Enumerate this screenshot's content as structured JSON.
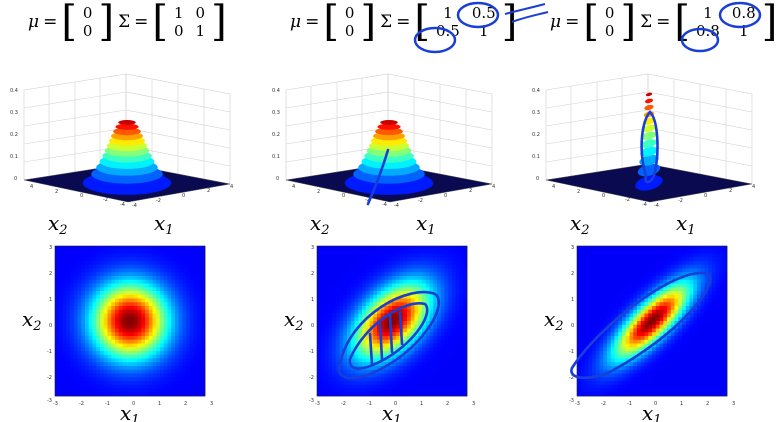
{
  "panels": [
    {
      "formula": {
        "mu_symbol": "μ",
        "sigma_symbol": "Σ",
        "eq": "=",
        "mu": [
          "0",
          "0"
        ],
        "sigma": [
          [
            "1",
            "0"
          ],
          [
            "0",
            "1"
          ]
        ]
      },
      "surface": {
        "ylim": [
          0,
          0.4
        ],
        "zticks": [
          "0.4",
          "0.3",
          "0.2",
          "0.1",
          "0"
        ],
        "xticks": [
          "-4",
          "-2",
          "0",
          "2",
          "4"
        ],
        "yticks": [
          "4",
          "2",
          "0",
          "-2",
          "-4"
        ],
        "x1_label": "x",
        "x1_sub": "1",
        "x2_label": "x",
        "x2_sub": "2"
      },
      "contour": {
        "xticks": [
          "-3",
          "-2",
          "-1",
          "0",
          "1",
          "2",
          "3"
        ],
        "yticks": [
          "3",
          "2",
          "1",
          "0",
          "-1",
          "-2",
          "-3"
        ],
        "x1_label": "x",
        "x1_sub": "1",
        "x2_label": "x",
        "x2_sub": "2"
      },
      "correlation": 0
    },
    {
      "formula": {
        "mu_symbol": "μ",
        "sigma_symbol": "Σ",
        "eq": "=",
        "mu": [
          "0",
          "0"
        ],
        "sigma": [
          [
            "1",
            "0.5"
          ],
          [
            "0.5",
            "1"
          ]
        ]
      },
      "surface": {
        "ylim": [
          0,
          0.4
        ],
        "zticks": [
          "0.4",
          "0.3",
          "0.2",
          "0.1",
          "0"
        ],
        "xticks": [
          "-4",
          "-2",
          "0",
          "2",
          "4"
        ],
        "yticks": [
          "4",
          "2",
          "0",
          "-2",
          "-4"
        ],
        "x1_label": "x",
        "x1_sub": "1",
        "x2_label": "x",
        "x2_sub": "2"
      },
      "contour": {
        "xticks": [
          "-3",
          "-2",
          "-1",
          "0",
          "1",
          "2",
          "3"
        ],
        "yticks": [
          "3",
          "2",
          "1",
          "0",
          "-1",
          "-2",
          "-3"
        ],
        "x1_label": "x",
        "x1_sub": "1",
        "x2_label": "x",
        "x2_sub": "2"
      },
      "correlation": 0.5
    },
    {
      "formula": {
        "mu_symbol": "μ",
        "sigma_symbol": "Σ",
        "eq": "=",
        "mu": [
          "0",
          "0"
        ],
        "sigma": [
          [
            "1",
            "0.8"
          ],
          [
            "0.8",
            "1"
          ]
        ]
      },
      "surface": {
        "ylim": [
          0,
          0.4
        ],
        "zticks": [
          "0.4",
          "0.3",
          "0.2",
          "0.1",
          "0"
        ],
        "xticks": [
          "-4",
          "-2",
          "0",
          "2",
          "4"
        ],
        "yticks": [
          "4",
          "2",
          "0",
          "-2",
          "-4"
        ],
        "x1_label": "x",
        "x1_sub": "1",
        "x2_label": "x",
        "x2_sub": "2"
      },
      "contour": {
        "xticks": [
          "-3",
          "-2",
          "-1",
          "0",
          "1",
          "2",
          "3"
        ],
        "yticks": [
          "3",
          "2",
          "1",
          "0",
          "-1",
          "-2",
          "-3"
        ],
        "x1_label": "x",
        "x1_sub": "1",
        "x2_label": "x",
        "x2_sub": "2"
      },
      "correlation": 0.8
    }
  ],
  "annotation_color": "#1a3fd6",
  "chart_data": [
    {
      "type": "heatmap",
      "title": "",
      "xlabel": "x1",
      "ylabel": "x2",
      "xlim": [
        -3,
        3
      ],
      "ylim": [
        -3,
        3
      ],
      "mean": [
        0,
        0
      ],
      "covariance": [
        [
          1,
          0
        ],
        [
          0,
          1
        ]
      ]
    },
    {
      "type": "heatmap",
      "title": "",
      "xlabel": "x1",
      "ylabel": "x2",
      "xlim": [
        -3,
        3
      ],
      "ylim": [
        -3,
        3
      ],
      "mean": [
        0,
        0
      ],
      "covariance": [
        [
          1,
          0.5
        ],
        [
          0.5,
          1
        ]
      ]
    },
    {
      "type": "heatmap",
      "title": "",
      "xlabel": "x1",
      "ylabel": "x2",
      "xlim": [
        -3,
        3
      ],
      "ylim": [
        -3,
        3
      ],
      "mean": [
        0,
        0
      ],
      "covariance": [
        [
          1,
          0.8
        ],
        [
          0.8,
          1
        ]
      ]
    }
  ]
}
